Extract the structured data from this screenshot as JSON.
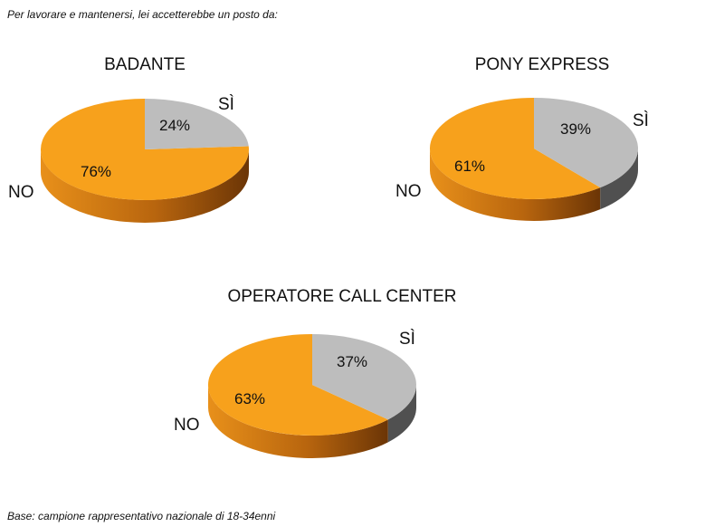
{
  "question": "Per lavorare e mantenersi, lei accetterebbe un posto da:",
  "base_note": "Base: campione rappresentativo nazionale di 18-34enni",
  "colors": {
    "no": "#F7A11C",
    "no_side_dark": "#6E3A08",
    "no_side_light": "#E58A12",
    "si": "#BDBDBD",
    "si_side": "#505050",
    "text": "#111111"
  },
  "chart_data": [
    {
      "type": "pie",
      "title": "BADANTE",
      "slices": [
        {
          "label": "SÌ",
          "value": 24,
          "value_label": "24%"
        },
        {
          "label": "NO",
          "value": 76,
          "value_label": "76%"
        }
      ]
    },
    {
      "type": "pie",
      "title": "PONY EXPRESS",
      "slices": [
        {
          "label": "SÌ",
          "value": 39,
          "value_label": "39%"
        },
        {
          "label": "NO",
          "value": 61,
          "value_label": "61%"
        }
      ]
    },
    {
      "type": "pie",
      "title": "OPERATORE CALL CENTER",
      "slices": [
        {
          "label": "SÌ",
          "value": 37,
          "value_label": "37%"
        },
        {
          "label": "NO",
          "value": 63,
          "value_label": "63%"
        }
      ]
    }
  ]
}
